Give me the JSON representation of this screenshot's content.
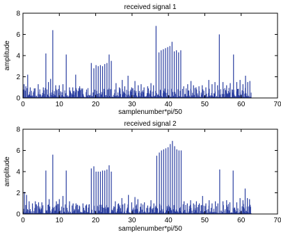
{
  "chart_data": [
    {
      "type": "line",
      "title": "received signal 1",
      "xlabel": "samplenumber*pi/50",
      "ylabel": "amplitude",
      "xlim": [
        0,
        70
      ],
      "ylim": [
        0,
        8
      ],
      "xticks": [
        0,
        10,
        20,
        30,
        40,
        50,
        60,
        70
      ],
      "yticks": [
        0,
        2,
        4,
        6,
        8
      ],
      "grid": false,
      "color": "#2a3ea0",
      "x_range": [
        0,
        62.8
      ],
      "peaks": [
        {
          "x": 0.3,
          "y": 1.3
        },
        {
          "x": 0.8,
          "y": 1.1
        },
        {
          "x": 1.3,
          "y": 2.2
        },
        {
          "x": 2.0,
          "y": 1.0
        },
        {
          "x": 3.1,
          "y": 0.9
        },
        {
          "x": 4.2,
          "y": 1.3
        },
        {
          "x": 5.6,
          "y": 1.0
        },
        {
          "x": 6.3,
          "y": 4.2
        },
        {
          "x": 7.0,
          "y": 1.5
        },
        {
          "x": 7.6,
          "y": 1.8
        },
        {
          "x": 8.2,
          "y": 6.4
        },
        {
          "x": 9.0,
          "y": 1.2
        },
        {
          "x": 10.0,
          "y": 1.2
        },
        {
          "x": 11.0,
          "y": 1.3
        },
        {
          "x": 11.9,
          "y": 4.1
        },
        {
          "x": 12.8,
          "y": 1.0
        },
        {
          "x": 13.7,
          "y": 1.0
        },
        {
          "x": 14.5,
          "y": 2.2
        },
        {
          "x": 15.6,
          "y": 1.1
        },
        {
          "x": 16.4,
          "y": 0.9
        },
        {
          "x": 17.5,
          "y": 0.8
        },
        {
          "x": 18.8,
          "y": 3.3
        },
        {
          "x": 19.5,
          "y": 2.8
        },
        {
          "x": 20.1,
          "y": 3.1
        },
        {
          "x": 20.7,
          "y": 3.0
        },
        {
          "x": 21.3,
          "y": 3.1
        },
        {
          "x": 21.9,
          "y": 3.0
        },
        {
          "x": 22.5,
          "y": 3.2
        },
        {
          "x": 23.1,
          "y": 3.3
        },
        {
          "x": 23.7,
          "y": 4.1
        },
        {
          "x": 24.3,
          "y": 3.5
        },
        {
          "x": 25.6,
          "y": 1.4
        },
        {
          "x": 26.5,
          "y": 1.0
        },
        {
          "x": 27.3,
          "y": 1.7
        },
        {
          "x": 28.0,
          "y": 1.1
        },
        {
          "x": 28.9,
          "y": 2.1
        },
        {
          "x": 29.9,
          "y": 1.0
        },
        {
          "x": 30.8,
          "y": 1.6
        },
        {
          "x": 31.7,
          "y": 1.2
        },
        {
          "x": 32.5,
          "y": 1.3
        },
        {
          "x": 33.3,
          "y": 1.0
        },
        {
          "x": 34.3,
          "y": 1.1
        },
        {
          "x": 35.2,
          "y": 1.4
        },
        {
          "x": 35.9,
          "y": 1.2
        },
        {
          "x": 36.6,
          "y": 6.8
        },
        {
          "x": 37.4,
          "y": 4.3
        },
        {
          "x": 38.0,
          "y": 4.5
        },
        {
          "x": 38.6,
          "y": 4.6
        },
        {
          "x": 39.2,
          "y": 4.7
        },
        {
          "x": 39.8,
          "y": 4.8
        },
        {
          "x": 40.4,
          "y": 4.9
        },
        {
          "x": 41.0,
          "y": 5.3
        },
        {
          "x": 41.6,
          "y": 4.4
        },
        {
          "x": 42.2,
          "y": 4.5
        },
        {
          "x": 42.8,
          "y": 4.3
        },
        {
          "x": 43.4,
          "y": 4.5
        },
        {
          "x": 44.2,
          "y": 1.1
        },
        {
          "x": 45.3,
          "y": 1.3
        },
        {
          "x": 46.2,
          "y": 1.6
        },
        {
          "x": 46.9,
          "y": 1.2
        },
        {
          "x": 47.6,
          "y": 1.0
        },
        {
          "x": 48.4,
          "y": 1.1
        },
        {
          "x": 49.3,
          "y": 1.2
        },
        {
          "x": 50.3,
          "y": 1.0
        },
        {
          "x": 51.1,
          "y": 1.7
        },
        {
          "x": 52.0,
          "y": 1.3
        },
        {
          "x": 52.8,
          "y": 1.5
        },
        {
          "x": 53.5,
          "y": 1.2
        },
        {
          "x": 54.0,
          "y": 6.0
        },
        {
          "x": 55.0,
          "y": 1.5
        },
        {
          "x": 56.0,
          "y": 1.2
        },
        {
          "x": 57.0,
          "y": 1.4
        },
        {
          "x": 57.9,
          "y": 4.1
        },
        {
          "x": 58.8,
          "y": 1.5
        },
        {
          "x": 59.7,
          "y": 1.7
        },
        {
          "x": 60.5,
          "y": 1.3
        },
        {
          "x": 61.2,
          "y": 2.1
        },
        {
          "x": 61.8,
          "y": 1.5
        },
        {
          "x": 62.4,
          "y": 1.6
        }
      ]
    },
    {
      "type": "line",
      "title": "received signal 2",
      "xlabel": "samplenumber*pi/50",
      "ylabel": "amplitude",
      "xlim": [
        0,
        70
      ],
      "ylim": [
        0,
        8
      ],
      "xticks": [
        0,
        10,
        20,
        30,
        40,
        50,
        60,
        70
      ],
      "yticks": [
        0,
        2,
        4,
        6,
        8
      ],
      "grid": false,
      "color": "#2a3ea0",
      "x_range": [
        0,
        62.8
      ],
      "peaks": [
        {
          "x": 0.4,
          "y": 2.1
        },
        {
          "x": 1.0,
          "y": 1.8
        },
        {
          "x": 1.7,
          "y": 1.2
        },
        {
          "x": 2.6,
          "y": 1.0
        },
        {
          "x": 3.4,
          "y": 1.2
        },
        {
          "x": 4.3,
          "y": 1.1
        },
        {
          "x": 5.2,
          "y": 1.1
        },
        {
          "x": 6.3,
          "y": 4.1
        },
        {
          "x": 7.2,
          "y": 1.4
        },
        {
          "x": 8.2,
          "y": 5.6
        },
        {
          "x": 9.2,
          "y": 1.2
        },
        {
          "x": 10.0,
          "y": 1.4
        },
        {
          "x": 11.0,
          "y": 1.7
        },
        {
          "x": 11.9,
          "y": 4.1
        },
        {
          "x": 12.8,
          "y": 1.2
        },
        {
          "x": 13.8,
          "y": 1.0
        },
        {
          "x": 14.6,
          "y": 1.0
        },
        {
          "x": 15.5,
          "y": 0.8
        },
        {
          "x": 16.5,
          "y": 1.0
        },
        {
          "x": 17.5,
          "y": 0.9
        },
        {
          "x": 18.8,
          "y": 4.3
        },
        {
          "x": 19.5,
          "y": 4.5
        },
        {
          "x": 20.1,
          "y": 4.0
        },
        {
          "x": 20.7,
          "y": 4.0
        },
        {
          "x": 21.3,
          "y": 4.0
        },
        {
          "x": 21.9,
          "y": 4.1
        },
        {
          "x": 22.5,
          "y": 4.1
        },
        {
          "x": 23.1,
          "y": 4.2
        },
        {
          "x": 23.7,
          "y": 4.6
        },
        {
          "x": 24.3,
          "y": 4.0
        },
        {
          "x": 25.4,
          "y": 1.2
        },
        {
          "x": 26.3,
          "y": 1.0
        },
        {
          "x": 27.2,
          "y": 1.5
        },
        {
          "x": 28.0,
          "y": 1.0
        },
        {
          "x": 29.0,
          "y": 1.8
        },
        {
          "x": 29.9,
          "y": 1.1
        },
        {
          "x": 30.8,
          "y": 1.6
        },
        {
          "x": 31.6,
          "y": 1.4
        },
        {
          "x": 32.5,
          "y": 1.0
        },
        {
          "x": 33.4,
          "y": 1.1
        },
        {
          "x": 34.3,
          "y": 0.8
        },
        {
          "x": 35.2,
          "y": 1.3
        },
        {
          "x": 36.0,
          "y": 1.0
        },
        {
          "x": 36.8,
          "y": 5.5
        },
        {
          "x": 37.5,
          "y": 5.8
        },
        {
          "x": 38.1,
          "y": 6.0
        },
        {
          "x": 38.7,
          "y": 6.1
        },
        {
          "x": 39.3,
          "y": 6.2
        },
        {
          "x": 39.9,
          "y": 6.3
        },
        {
          "x": 40.5,
          "y": 6.6
        },
        {
          "x": 41.1,
          "y": 6.9
        },
        {
          "x": 41.7,
          "y": 6.4
        },
        {
          "x": 42.3,
          "y": 6.1
        },
        {
          "x": 42.9,
          "y": 6.0
        },
        {
          "x": 43.5,
          "y": 6.0
        },
        {
          "x": 44.3,
          "y": 1.2
        },
        {
          "x": 45.2,
          "y": 1.0
        },
        {
          "x": 46.1,
          "y": 1.3
        },
        {
          "x": 46.9,
          "y": 1.0
        },
        {
          "x": 47.7,
          "y": 1.2
        },
        {
          "x": 48.5,
          "y": 1.0
        },
        {
          "x": 49.4,
          "y": 1.7
        },
        {
          "x": 50.3,
          "y": 1.0
        },
        {
          "x": 51.2,
          "y": 1.3
        },
        {
          "x": 52.0,
          "y": 1.0
        },
        {
          "x": 52.9,
          "y": 1.2
        },
        {
          "x": 53.6,
          "y": 1.0
        },
        {
          "x": 54.1,
          "y": 4.2
        },
        {
          "x": 55.0,
          "y": 1.2
        },
        {
          "x": 56.0,
          "y": 1.3
        },
        {
          "x": 56.9,
          "y": 1.1
        },
        {
          "x": 57.8,
          "y": 4.1
        },
        {
          "x": 58.8,
          "y": 1.1
        },
        {
          "x": 59.7,
          "y": 1.5
        },
        {
          "x": 60.5,
          "y": 1.3
        },
        {
          "x": 61.1,
          "y": 2.4
        },
        {
          "x": 61.7,
          "y": 1.5
        },
        {
          "x": 62.3,
          "y": 1.4
        }
      ]
    }
  ]
}
